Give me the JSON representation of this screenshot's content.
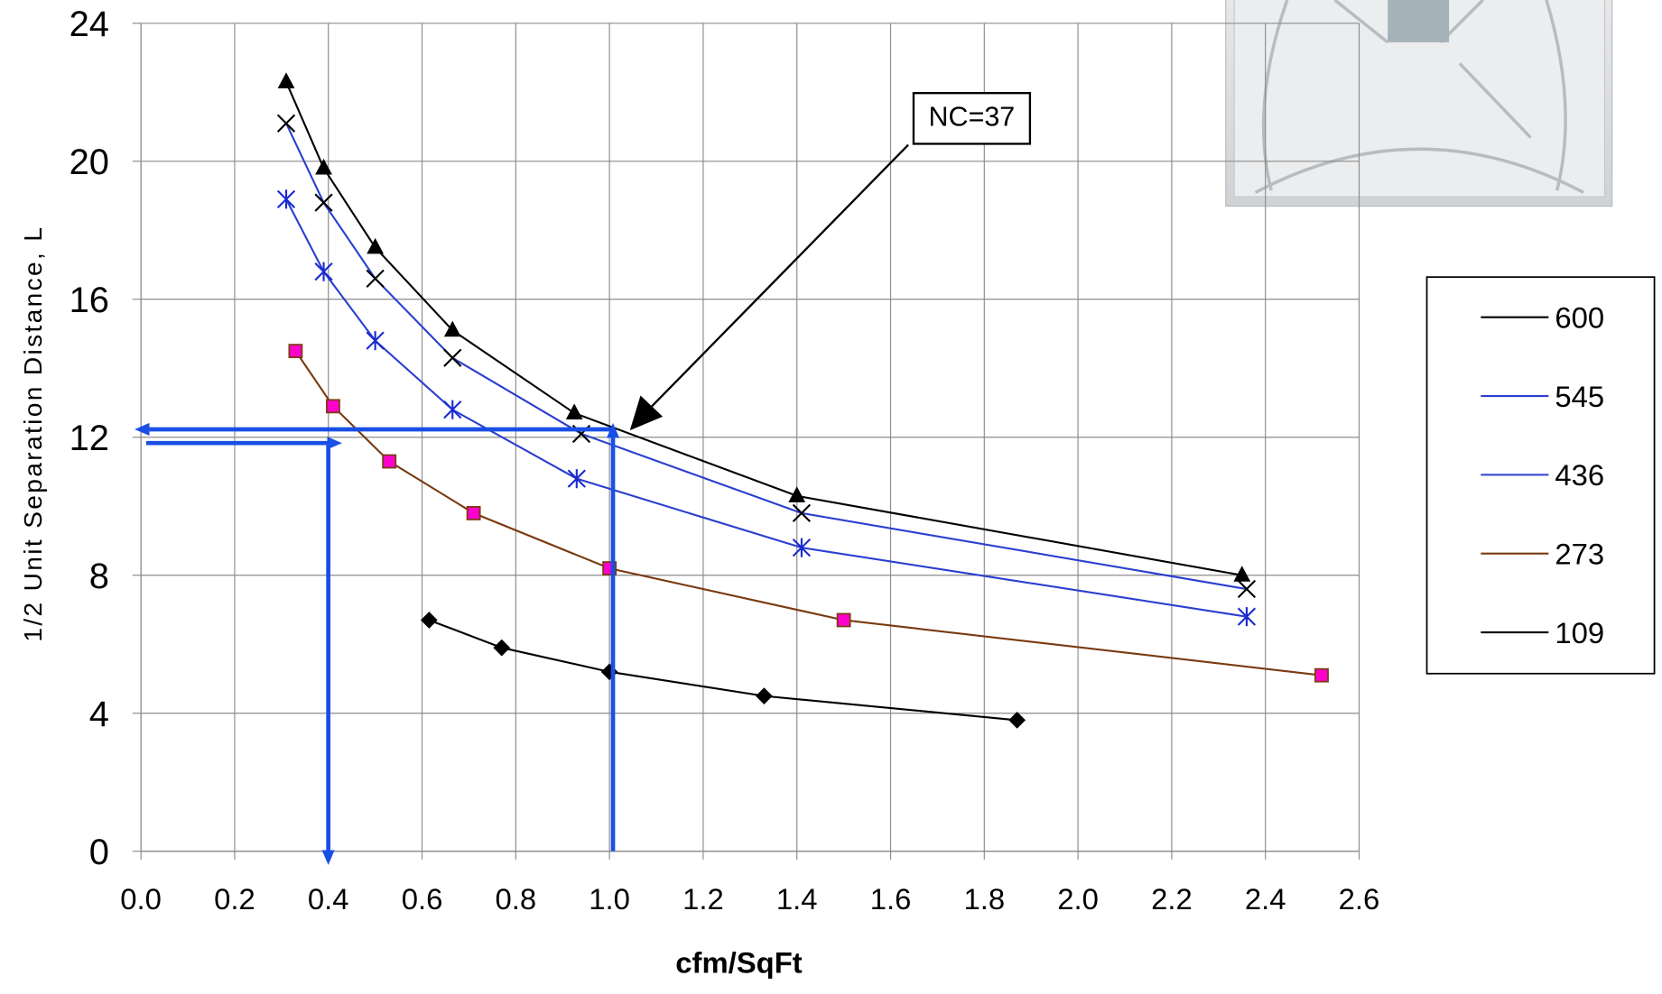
{
  "chart_data": {
    "type": "line",
    "x_label": "cfm/SqFt",
    "y_label": "1/2 Unit Separation Distance, L",
    "annotation": "NC=37",
    "xlim": [
      0,
      2.6
    ],
    "ylim": [
      0,
      24
    ],
    "xticks": [
      {
        "value": 0,
        "label": "0.0"
      },
      0.2,
      0.4,
      0.6,
      0.8,
      {
        "value": 1,
        "label": "1.0"
      },
      1.2,
      1.4,
      1.6,
      1.8,
      {
        "value": 2,
        "label": "2.0"
      },
      2.2,
      2.4,
      2.6
    ],
    "yticks": [
      0,
      4,
      8,
      12,
      16,
      20,
      24
    ],
    "grid": true,
    "legend": "right",
    "series": [
      {
        "name": "600",
        "color": "#000000",
        "marker": "triangle",
        "marker_color": "#000000",
        "x": [
          0.31,
          0.39,
          0.5,
          0.665,
          0.925,
          1.4,
          2.35
        ],
        "values": [
          22.3,
          19.8,
          17.5,
          15.1,
          12.7,
          10.3,
          8.0
        ]
      },
      {
        "name": "545",
        "color": "#2a3fd0",
        "marker": "x",
        "marker_color": "#000000",
        "x": [
          0.31,
          0.39,
          0.5,
          0.665,
          0.94,
          1.41,
          2.36
        ],
        "values": [
          21.1,
          18.8,
          16.6,
          14.3,
          12.1,
          9.8,
          7.6
        ]
      },
      {
        "name": "436",
        "color": "#2a3fd0",
        "marker": "asterisk",
        "marker_color": "#1a2ad0",
        "x": [
          0.31,
          0.39,
          0.5,
          0.665,
          0.93,
          1.41,
          2.36
        ],
        "values": [
          18.9,
          16.8,
          14.8,
          12.8,
          10.8,
          8.8,
          6.8
        ]
      },
      {
        "name": "273",
        "color": "#7a3a10",
        "marker": "square",
        "marker_color": "#ff00cc",
        "x": [
          0.33,
          0.41,
          0.53,
          0.71,
          1.0,
          1.5,
          2.52
        ],
        "values": [
          14.5,
          12.9,
          11.3,
          9.8,
          8.2,
          6.7,
          5.1
        ]
      },
      {
        "name": "109",
        "color": "#000000",
        "marker": "diamond",
        "marker_color": "#000000",
        "x": [
          0.615,
          0.77,
          1.0,
          1.33,
          1.87
        ],
        "values": [
          6.7,
          5.9,
          5.2,
          4.5,
          3.8
        ]
      }
    ]
  }
}
